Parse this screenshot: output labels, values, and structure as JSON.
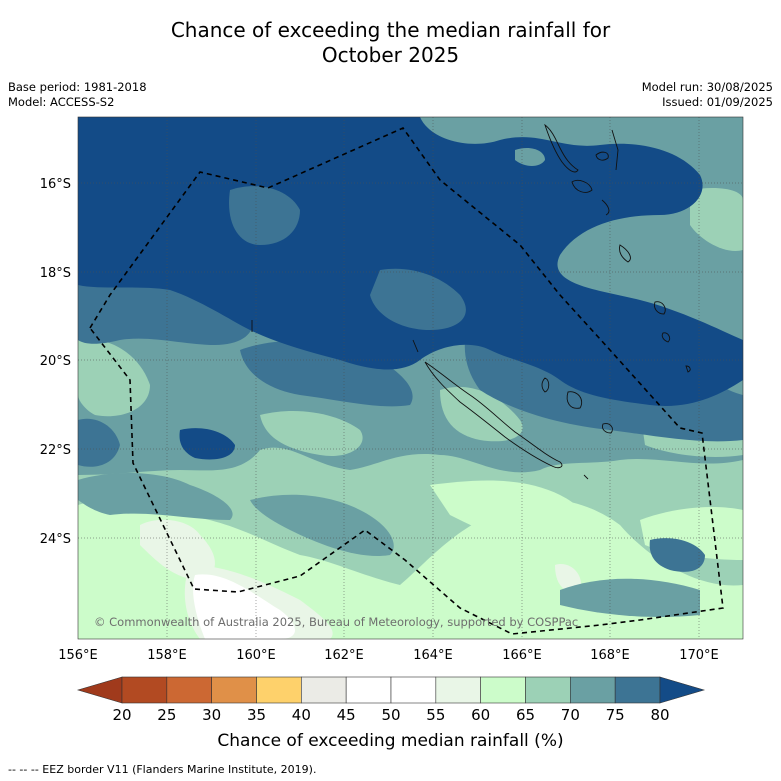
{
  "title": {
    "line1": "Chance of exceeding the median rainfall for",
    "line2": "October 2025"
  },
  "meta": {
    "base_period": "Base period: 1981-2018",
    "model": "Model: ACCESS-S2",
    "model_run": "Model run: 30/08/2025",
    "issued": "Issued: 01/09/2025"
  },
  "map": {
    "lon_ticks": [
      "156°E",
      "158°E",
      "160°E",
      "162°E",
      "164°E",
      "166°E",
      "168°E",
      "170°E"
    ],
    "lat_ticks": [
      "16°S",
      "18°S",
      "20°S",
      "22°S",
      "24°S"
    ],
    "copyright": "© Commonwealth of Australia 2025, Bureau of Meteorology, supported by COSPPac"
  },
  "colorbar": {
    "ticks": [
      "20",
      "25",
      "30",
      "35",
      "40",
      "45",
      "50",
      "55",
      "60",
      "65",
      "70",
      "75",
      "80"
    ],
    "colors": [
      "#b24a22",
      "#cc6833",
      "#e09048",
      "#fed16b",
      "#ebebe6",
      "#ffffff",
      "#ffffff",
      "#e9f6e7",
      "#ccfcca",
      "#9cd1b6",
      "#6aa0a3",
      "#3d7494"
    ],
    "under_color": "#a03a1c",
    "over_color": "#134b87",
    "label": "Chance of exceeding median rainfall (%)"
  },
  "footer": "--  --  -- EEZ border V11 (Flanders Marine Institute, 2019)."
}
